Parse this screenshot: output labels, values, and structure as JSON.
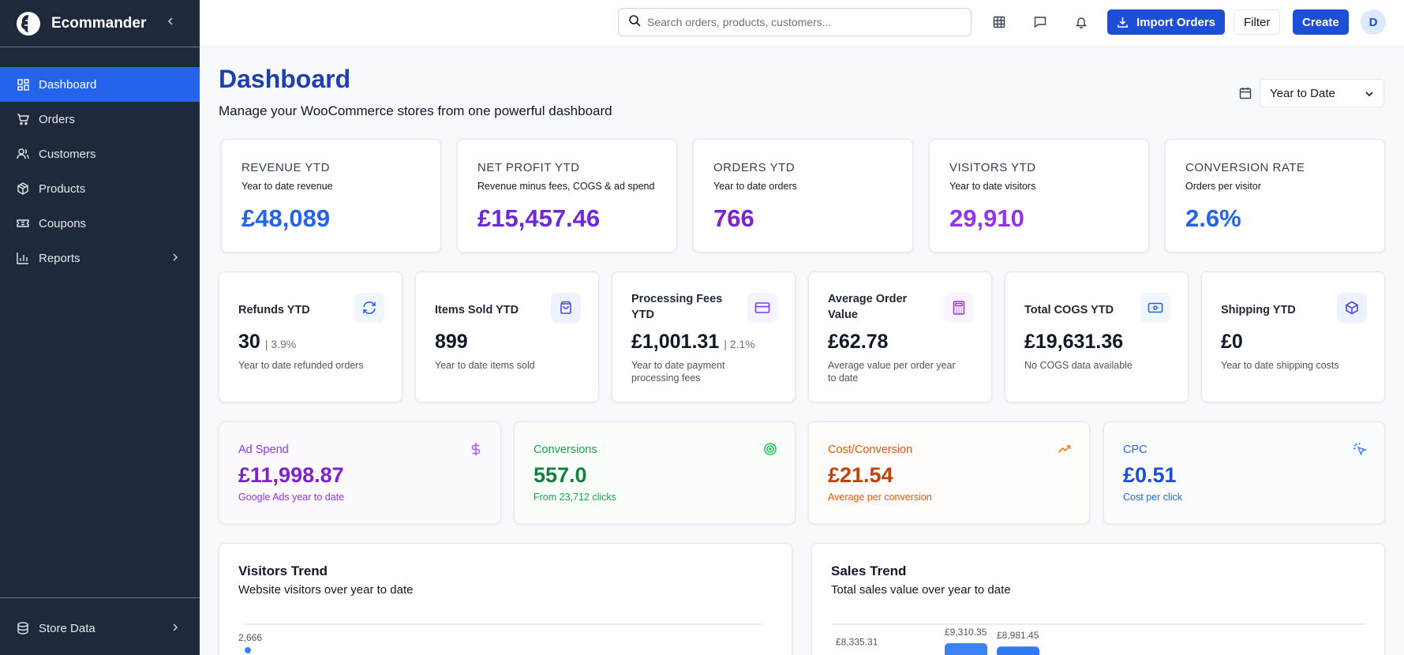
{
  "app": {
    "name": "Ecommander"
  },
  "sidebar": {
    "items": [
      {
        "label": "Dashboard",
        "icon": "grid-icon",
        "active": true
      },
      {
        "label": "Orders",
        "icon": "cart-icon"
      },
      {
        "label": "Customers",
        "icon": "users-icon"
      },
      {
        "label": "Products",
        "icon": "package-icon"
      },
      {
        "label": "Coupons",
        "icon": "ticket-icon"
      },
      {
        "label": "Reports",
        "icon": "bar-chart-icon"
      }
    ],
    "footer": {
      "label": "Store Data",
      "icon": "database-icon"
    }
  },
  "header": {
    "search_placeholder": "Search orders, products, customers...",
    "import_label": "Import Orders",
    "filter_label": "Filter",
    "create_label": "Create",
    "avatar_initial": "D"
  },
  "page": {
    "title": "Dashboard",
    "subtitle": "Manage your WooCommerce stores from one powerful dashboard",
    "date_range": "Year to Date"
  },
  "kpis": [
    {
      "label": "REVENUE YTD",
      "sub": "Year to date revenue",
      "value": "£48,089",
      "color": "#2563eb"
    },
    {
      "label": "NET PROFIT YTD",
      "sub": "Revenue minus fees, COGS & ad spend",
      "value": "£15,457.46",
      "color": "#6d28d9"
    },
    {
      "label": "ORDERS YTD",
      "sub": "Year to date orders",
      "value": "766",
      "color": "#7e22ce"
    },
    {
      "label": "VISITORS YTD",
      "sub": "Year to date visitors",
      "value": "29,910",
      "color": "#9333ea"
    },
    {
      "label": "CONVERSION RATE",
      "sub": "Orders per visitor",
      "value": "2.6%",
      "color": "#2563eb"
    }
  ],
  "stats": [
    {
      "label": "Refunds YTD",
      "value": "30",
      "pct": "| 3.9%",
      "sub": "Year to date refunded orders",
      "icon": "refresh-icon",
      "badge_bg": "#eff6ff",
      "icon_color": "#2563eb"
    },
    {
      "label": "Items Sold YTD",
      "value": "899",
      "pct": "",
      "sub": "Year to date items sold",
      "icon": "shopping-bag-icon",
      "badge_bg": "#eef2ff",
      "icon_color": "#4f46e5"
    },
    {
      "label": "Processing Fees YTD",
      "value": "£1,001.31",
      "pct": "| 2.1%",
      "sub": "Year to date payment processing fees",
      "icon": "credit-card-icon",
      "badge_bg": "#f5f3ff",
      "icon_color": "#7c3aed"
    },
    {
      "label": "Average Order Value",
      "value": "£62.78",
      "pct": "",
      "sub": "Average value per order year to date",
      "icon": "calculator-icon",
      "badge_bg": "#faf5ff",
      "icon_color": "#9333ea"
    },
    {
      "label": "Total COGS YTD",
      "value": "£19,631.36",
      "pct": "",
      "sub": "No COGS data available",
      "icon": "banknote-icon",
      "badge_bg": "#eff6ff",
      "icon_color": "#2563eb"
    },
    {
      "label": "Shipping YTD",
      "value": "£0",
      "pct": "",
      "sub": "Year to date shipping costs",
      "icon": "box-icon",
      "badge_bg": "#eef2ff",
      "icon_color": "#4f46e5"
    }
  ],
  "ads": [
    {
      "label": "Ad Spend",
      "value": "£11,998.87",
      "sub": "Google Ads year to date",
      "icon": "dollar-icon",
      "color": "#9333ea",
      "bg": "#fdfaff"
    },
    {
      "label": "Conversions",
      "value": "557.0",
      "sub": "From 23,712 clicks",
      "icon": "target-icon",
      "color": "#16a34a",
      "bg": "#f9fefb"
    },
    {
      "label": "Cost/Conversion",
      "value": "£21.54",
      "sub": "Average per conversion",
      "icon": "trending-up-icon",
      "color": "#ea580c",
      "bg": "#fffcf9"
    },
    {
      "label": "CPC",
      "value": "£0.51",
      "sub": "Cost per click",
      "icon": "pointer-click-icon",
      "color": "#2563eb",
      "bg": "#fafcff"
    }
  ],
  "charts": {
    "visitors": {
      "title": "Visitors Trend",
      "subtitle": "Website visitors over year to date"
    },
    "sales": {
      "title": "Sales Trend",
      "subtitle": "Total sales value over year to date"
    }
  },
  "chart_data": [
    {
      "type": "line",
      "title": "Visitors Trend",
      "point_labels": [
        "2,666"
      ],
      "y": [
        2666
      ]
    },
    {
      "type": "bar",
      "title": "Sales Trend",
      "value_labels": [
        "£8,335.31",
        "£9,310.35",
        "£8,981.45"
      ],
      "values": [
        8335.31,
        9310.35,
        8981.45
      ]
    }
  ]
}
